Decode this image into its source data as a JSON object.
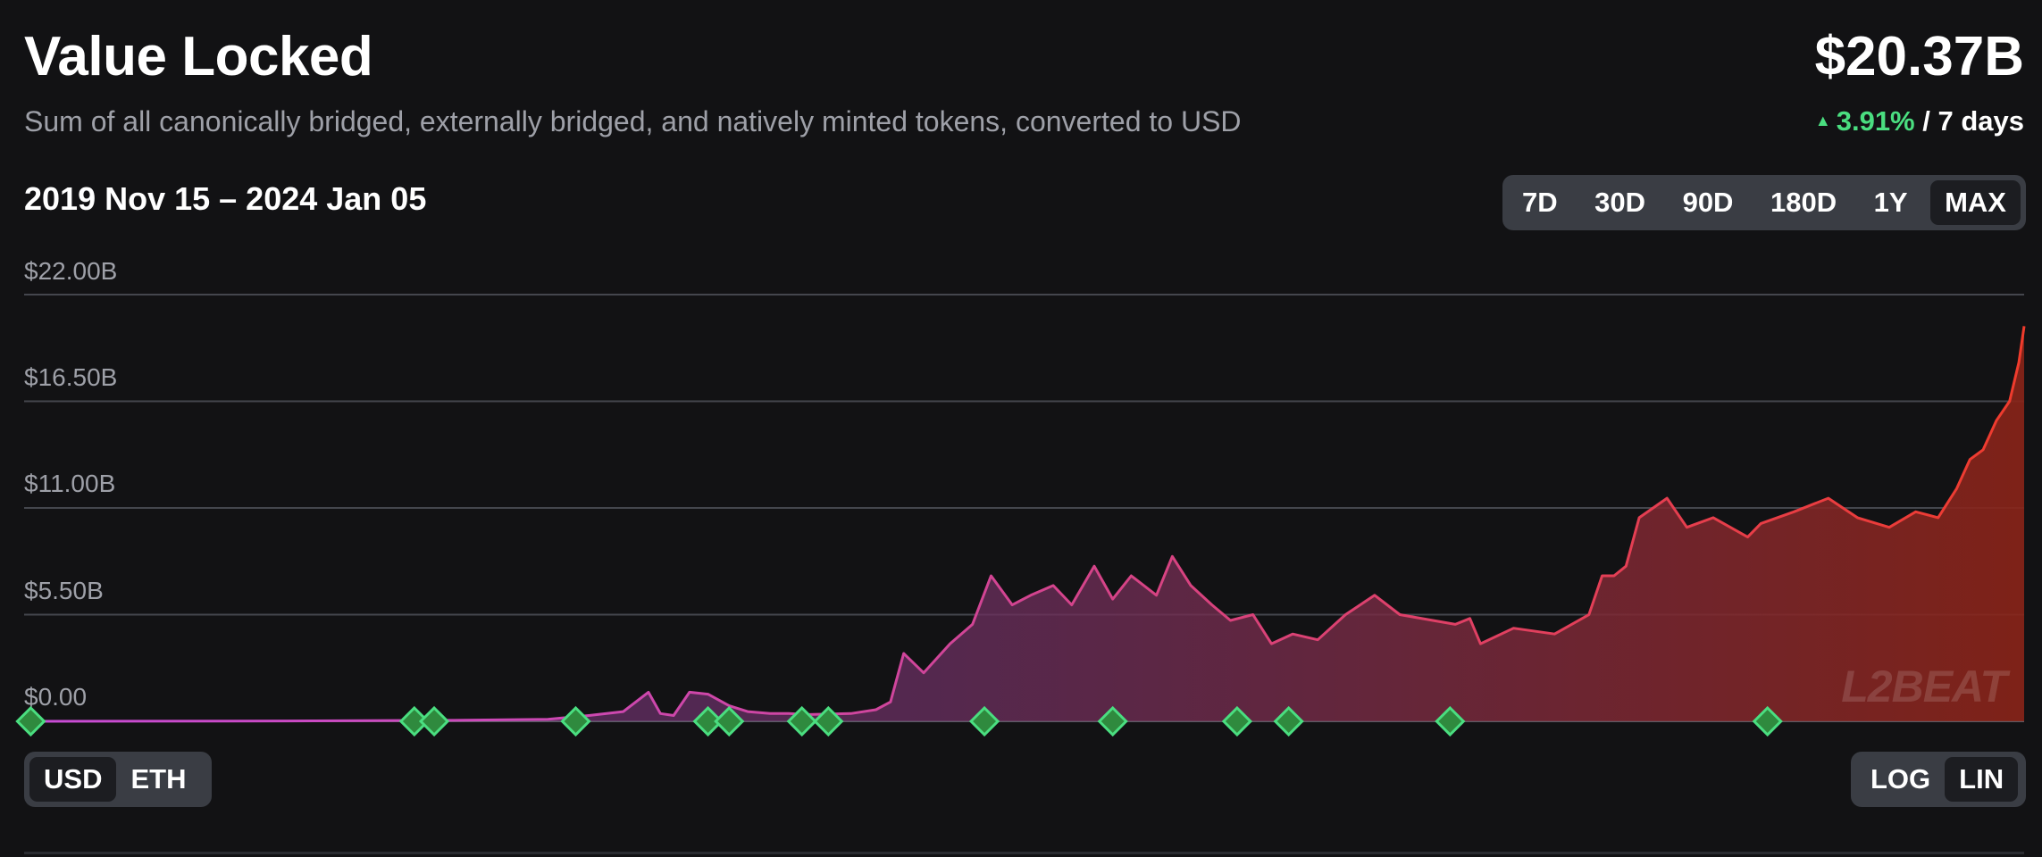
{
  "header": {
    "title": "Value Locked",
    "subtitle": "Sum of all canonically bridged, externally bridged, and natively minted tokens, converted to USD",
    "total": "$20.37B",
    "change_pct": "3.91%",
    "change_period": "/ 7 days",
    "date_range": "2019 Nov 15 – 2024 Jan 05"
  },
  "controls": {
    "periods": [
      "7D",
      "30D",
      "90D",
      "180D",
      "1Y",
      "MAX"
    ],
    "active_period": "MAX",
    "currency": [
      "USD",
      "ETH"
    ],
    "active_currency": "USD",
    "scale": [
      "LOG",
      "LIN"
    ],
    "active_scale": "LIN"
  },
  "watermark": "L2BEAT",
  "colors": {
    "background": "#121214",
    "line_start": "#c74cd6",
    "line_end": "#ef3b2c",
    "marker": "#4ade80",
    "positive": "#4ade80"
  },
  "chart_data": {
    "type": "area",
    "y_tick_labels": [
      "$22.00B",
      "$16.50B",
      "$11.00B",
      "$5.50B",
      "$0.00"
    ],
    "ylim": [
      0,
      22
    ],
    "y_unit": "USD billions",
    "scale": "linear",
    "grid": true,
    "x": [
      "2019-11-15",
      "2020-06-01",
      "2020-10-01",
      "2020-12-15",
      "2021-01-15",
      "2021-02-10",
      "2021-03-01",
      "2021-03-10",
      "2021-03-20",
      "2021-04-01",
      "2021-04-15",
      "2021-05-01",
      "2021-05-15",
      "2021-06-01",
      "2021-06-15",
      "2021-07-01",
      "2021-08-01",
      "2021-08-20",
      "2021-08-31",
      "2021-09-10",
      "2021-09-25",
      "2021-10-15",
      "2021-11-01",
      "2021-11-15",
      "2021-12-01",
      "2021-12-15",
      "2022-01-01",
      "2022-01-15",
      "2022-02-01",
      "2022-02-15",
      "2022-03-01",
      "2022-03-20",
      "2022-04-01",
      "2022-04-15",
      "2022-05-01",
      "2022-05-15",
      "2022-06-01",
      "2022-06-15",
      "2022-07-01",
      "2022-07-20",
      "2022-08-10",
      "2022-09-01",
      "2022-09-20",
      "2022-10-15",
      "2022-11-01",
      "2022-11-12",
      "2022-11-20",
      "2022-12-15",
      "2023-01-15",
      "2023-02-10",
      "2023-02-20",
      "2023-03-01",
      "2023-03-10",
      "2023-03-20",
      "2023-04-10",
      "2023-04-25",
      "2023-05-15",
      "2023-06-10",
      "2023-06-20",
      "2023-07-15",
      "2023-08-10",
      "2023-09-01",
      "2023-09-25",
      "2023-10-15",
      "2023-11-01",
      "2023-11-15",
      "2023-11-25",
      "2023-12-05",
      "2023-12-15",
      "2023-12-25",
      "2024-01-01",
      "2024-01-05"
    ],
    "series": [
      {
        "values": [
          0.0,
          0.02,
          0.05,
          0.1,
          0.3,
          0.5,
          1.5,
          0.4,
          0.3,
          1.5,
          1.4,
          0.8,
          0.5,
          0.4,
          0.4,
          0.35,
          0.4,
          0.6,
          1.0,
          3.5,
          2.5,
          4.0,
          5.0,
          7.5,
          6.0,
          6.5,
          7.0,
          6.0,
          8.0,
          6.3,
          7.5,
          6.5,
          8.5,
          7.0,
          6.0,
          5.2,
          5.5,
          4.0,
          4.5,
          4.2,
          5.5,
          6.5,
          5.5,
          5.2,
          5.0,
          5.3,
          4.0,
          4.8,
          4.5,
          5.5,
          7.5,
          7.5,
          8.0,
          10.5,
          11.5,
          10.0,
          10.5,
          9.5,
          10.2,
          10.8,
          11.5,
          10.5,
          10.0,
          10.8,
          10.5,
          12.0,
          13.5,
          14.0,
          15.5,
          16.5,
          18.5,
          20.37
        ]
      }
    ],
    "markers_x": [
      "2019-11-20",
      "2020-09-05",
      "2020-09-20",
      "2021-01-05",
      "2021-04-15",
      "2021-05-01",
      "2021-06-25",
      "2021-07-15",
      "2021-11-10",
      "2022-02-15",
      "2022-05-20",
      "2022-06-28",
      "2022-10-28",
      "2023-06-25"
    ]
  }
}
